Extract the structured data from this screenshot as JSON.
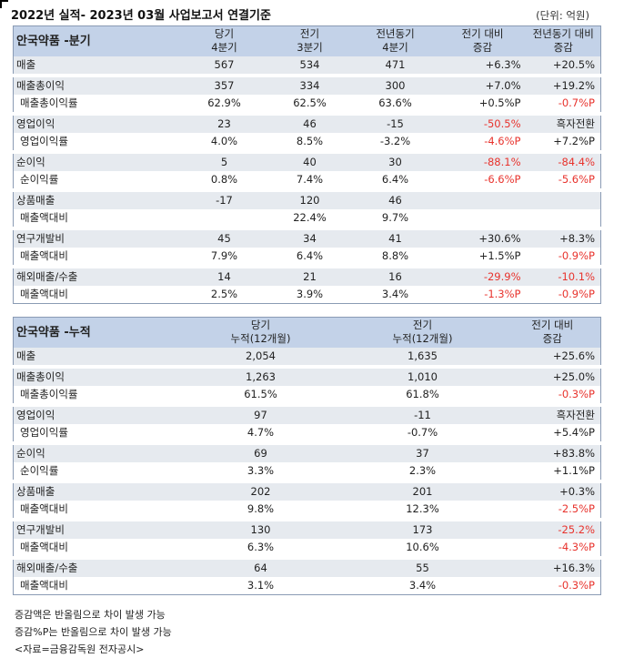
{
  "title": "2022년 실적- 2023년 03월 사업보고서 연결기준",
  "unit": "(단위: 억원)",
  "quarterly": {
    "segment": "안국약품 -분기",
    "headers": [
      [
        "당기",
        "4분기"
      ],
      [
        "전기",
        "3분기"
      ],
      [
        "전년동기",
        "4분기"
      ],
      [
        "전기 대비",
        "증감"
      ],
      [
        "전년동기 대비",
        "증감"
      ]
    ],
    "rows": [
      {
        "label": "매출",
        "sub": false,
        "group_start": true,
        "cells": [
          "567",
          "534",
          "471",
          "+6.3%",
          "+20.5%"
        ],
        "neg": [
          false,
          false,
          false,
          false,
          false
        ]
      },
      {
        "label": "매출총이익",
        "sub": false,
        "group_start": true,
        "cells": [
          "357",
          "334",
          "300",
          "+7.0%",
          "+19.2%"
        ],
        "neg": [
          false,
          false,
          false,
          false,
          false
        ]
      },
      {
        "label": "매출총이익률",
        "sub": true,
        "group_start": false,
        "cells": [
          "62.9%",
          "62.5%",
          "63.6%",
          "+0.5%P",
          "-0.7%P"
        ],
        "neg": [
          false,
          false,
          false,
          false,
          true
        ]
      },
      {
        "label": "영업이익",
        "sub": false,
        "group_start": true,
        "cells": [
          "23",
          "46",
          "-15",
          "-50.5%",
          "흑자전환"
        ],
        "neg": [
          false,
          false,
          false,
          true,
          false
        ]
      },
      {
        "label": "영업이익률",
        "sub": true,
        "group_start": false,
        "cells": [
          "4.0%",
          "8.5%",
          "-3.2%",
          "-4.6%P",
          "+7.2%P"
        ],
        "neg": [
          false,
          false,
          false,
          true,
          false
        ]
      },
      {
        "label": "순이익",
        "sub": false,
        "group_start": true,
        "cells": [
          "5",
          "40",
          "30",
          "-88.1%",
          "-84.4%"
        ],
        "neg": [
          false,
          false,
          false,
          true,
          true
        ]
      },
      {
        "label": "순이익률",
        "sub": true,
        "group_start": false,
        "cells": [
          "0.8%",
          "7.4%",
          "6.4%",
          "-6.6%P",
          "-5.6%P"
        ],
        "neg": [
          false,
          false,
          false,
          true,
          true
        ]
      },
      {
        "label": "상품매출",
        "sub": false,
        "group_start": true,
        "cells": [
          "-17",
          "120",
          "46",
          "",
          ""
        ],
        "neg": [
          false,
          false,
          false,
          false,
          false
        ]
      },
      {
        "label": "매출액대비",
        "sub": true,
        "group_start": false,
        "cells": [
          "",
          "22.4%",
          "9.7%",
          "",
          ""
        ],
        "neg": [
          false,
          false,
          false,
          false,
          false
        ]
      },
      {
        "label": "연구개발비",
        "sub": false,
        "group_start": true,
        "cells": [
          "45",
          "34",
          "41",
          "+30.6%",
          "+8.3%"
        ],
        "neg": [
          false,
          false,
          false,
          false,
          false
        ]
      },
      {
        "label": "매출액대비",
        "sub": true,
        "group_start": false,
        "cells": [
          "7.9%",
          "6.4%",
          "8.8%",
          "+1.5%P",
          "-0.9%P"
        ],
        "neg": [
          false,
          false,
          false,
          false,
          true
        ]
      },
      {
        "label": "해외매출/수출",
        "sub": false,
        "group_start": true,
        "cells": [
          "14",
          "21",
          "16",
          "-29.9%",
          "-10.1%"
        ],
        "neg": [
          false,
          false,
          false,
          true,
          true
        ]
      },
      {
        "label": "매출액대비",
        "sub": true,
        "group_start": false,
        "cells": [
          "2.5%",
          "3.9%",
          "3.4%",
          "-1.3%P",
          "-0.9%P"
        ],
        "neg": [
          false,
          false,
          false,
          true,
          true
        ]
      }
    ]
  },
  "cumulative": {
    "segment": "안국약품 -누적",
    "headers": [
      [
        "당기",
        "누적(12개월)"
      ],
      [
        "전기",
        "누적(12개월)"
      ],
      [
        "전기 대비",
        "증감"
      ]
    ],
    "rows": [
      {
        "label": "매출",
        "sub": false,
        "group_start": true,
        "cells": [
          "2,054",
          "1,635",
          "+25.6%"
        ],
        "neg": [
          false,
          false,
          false
        ]
      },
      {
        "label": "매출총이익",
        "sub": false,
        "group_start": true,
        "cells": [
          "1,263",
          "1,010",
          "+25.0%"
        ],
        "neg": [
          false,
          false,
          false
        ]
      },
      {
        "label": "매출총이익률",
        "sub": true,
        "group_start": false,
        "cells": [
          "61.5%",
          "61.8%",
          "-0.3%P"
        ],
        "neg": [
          false,
          false,
          true
        ]
      },
      {
        "label": "영업이익",
        "sub": false,
        "group_start": true,
        "cells": [
          "97",
          "-11",
          "흑자전환"
        ],
        "neg": [
          false,
          false,
          false
        ]
      },
      {
        "label": "영업이익률",
        "sub": true,
        "group_start": false,
        "cells": [
          "4.7%",
          "-0.7%",
          "+5.4%P"
        ],
        "neg": [
          false,
          false,
          false
        ]
      },
      {
        "label": "순이익",
        "sub": false,
        "group_start": true,
        "cells": [
          "69",
          "37",
          "+83.8%"
        ],
        "neg": [
          false,
          false,
          false
        ]
      },
      {
        "label": "순이익률",
        "sub": true,
        "group_start": false,
        "cells": [
          "3.3%",
          "2.3%",
          "+1.1%P"
        ],
        "neg": [
          false,
          false,
          false
        ]
      },
      {
        "label": "상품매출",
        "sub": false,
        "group_start": true,
        "cells": [
          "202",
          "201",
          "+0.3%"
        ],
        "neg": [
          false,
          false,
          false
        ]
      },
      {
        "label": "매출액대비",
        "sub": true,
        "group_start": false,
        "cells": [
          "9.8%",
          "12.3%",
          "-2.5%P"
        ],
        "neg": [
          false,
          false,
          true
        ]
      },
      {
        "label": "연구개발비",
        "sub": false,
        "group_start": true,
        "cells": [
          "130",
          "173",
          "-25.2%"
        ],
        "neg": [
          false,
          false,
          true
        ]
      },
      {
        "label": "매출액대비",
        "sub": true,
        "group_start": false,
        "cells": [
          "6.3%",
          "10.6%",
          "-4.3%P"
        ],
        "neg": [
          false,
          false,
          true
        ]
      },
      {
        "label": "해외매출/수출",
        "sub": false,
        "group_start": true,
        "cells": [
          "64",
          "55",
          "+16.3%"
        ],
        "neg": [
          false,
          false,
          false
        ]
      },
      {
        "label": "매출액대비",
        "sub": true,
        "group_start": false,
        "cells": [
          "3.1%",
          "3.4%",
          "-0.3%P"
        ],
        "neg": [
          false,
          false,
          true
        ]
      }
    ]
  },
  "footnotes": [
    "증감액은 반올림으로 차이 발생 가능",
    "증감%P는 반올림으로 차이 발생 가능",
    "<자료=금융감독원 전자공시>"
  ]
}
